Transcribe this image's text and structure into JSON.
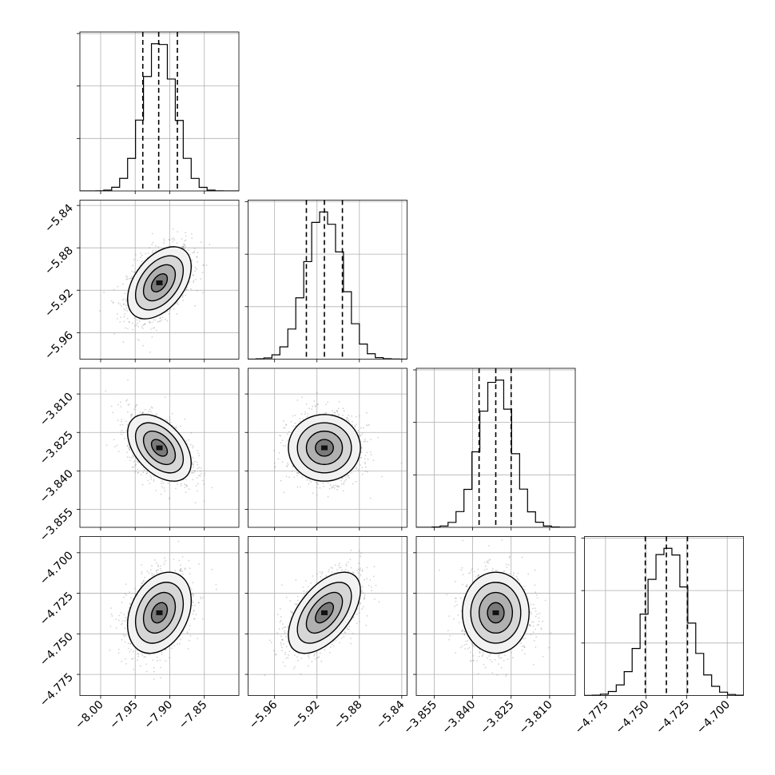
{
  "chart_data": {
    "type": "corner",
    "grid": true,
    "n_params": 4,
    "parameters": [
      {
        "index": 0,
        "range": [
          -8.03,
          -7.8
        ],
        "mean": -7.915,
        "sigma": 0.023,
        "quantiles": [
          -7.939,
          -7.916,
          -7.889
        ],
        "x_ticks": [
          -8.0,
          -7.95,
          -7.9,
          -7.85
        ],
        "x_tick_labels": [
          "−8.00",
          "−7.95",
          "−7.90",
          "−7.85"
        ],
        "y_ticks": [],
        "y_tick_labels": []
      },
      {
        "index": 1,
        "range": [
          -5.985,
          -5.835
        ],
        "mean": -5.913,
        "sigma": 0.017,
        "quantiles": [
          -5.93,
          -5.913,
          -5.896
        ],
        "x_ticks": [
          -5.96,
          -5.92,
          -5.88,
          -5.84
        ],
        "x_tick_labels": [
          "−5.96",
          "−5.92",
          "−5.88",
          "−5.84"
        ],
        "y_ticks": [
          -5.84,
          -5.88,
          -5.92,
          -5.96
        ],
        "y_tick_labels": [
          "−5.84",
          "−5.88",
          "−5.92",
          "−5.96"
        ]
      },
      {
        "index": 2,
        "range": [
          -3.862,
          -3.8
        ],
        "mean": -3.831,
        "sigma": 0.0065,
        "quantiles": [
          -3.8375,
          -3.831,
          -3.825
        ],
        "x_ticks": [
          -3.855,
          -3.84,
          -3.825,
          -3.81
        ],
        "x_tick_labels": [
          "−3.855",
          "−3.840",
          "−3.825",
          "−3.810"
        ],
        "y_ticks": [
          -3.81,
          -3.825,
          -3.84,
          -3.855
        ],
        "y_tick_labels": [
          "−3.810",
          "−3.825",
          "−3.840",
          "−3.855"
        ]
      },
      {
        "index": 3,
        "range": [
          -4.788,
          -4.69
        ],
        "mean": -4.737,
        "sigma": 0.0125,
        "quantiles": [
          -4.7505,
          -4.7375,
          -4.7245
        ],
        "x_ticks": [
          -4.775,
          -4.75,
          -4.725,
          -4.7
        ],
        "x_tick_labels": [
          "−4.775",
          "−4.750",
          "−4.725",
          "−4.700"
        ],
        "y_ticks": [
          -4.7,
          -4.725,
          -4.75,
          -4.775
        ],
        "y_tick_labels": [
          "−4.700",
          "−4.725",
          "−4.750",
          "−4.775"
        ]
      }
    ],
    "correlations": [
      {
        "x_param": 0,
        "y_param": 1,
        "rho": 0.45
      },
      {
        "x_param": 0,
        "y_param": 2,
        "rho": -0.45
      },
      {
        "x_param": 1,
        "y_param": 2,
        "rho": 0.0
      },
      {
        "x_param": 0,
        "y_param": 3,
        "rho": 0.3
      },
      {
        "x_param": 1,
        "y_param": 3,
        "rho": 0.55
      },
      {
        "x_param": 2,
        "y_param": 3,
        "rho": 0.0
      }
    ],
    "histogram_bins": 20,
    "contour_levels_sigma": [
      0.5,
      1.0,
      1.5,
      2.0
    ],
    "colors": {
      "line": "#000000",
      "grid": "#b0b0b0",
      "scatter": "#808080"
    }
  }
}
